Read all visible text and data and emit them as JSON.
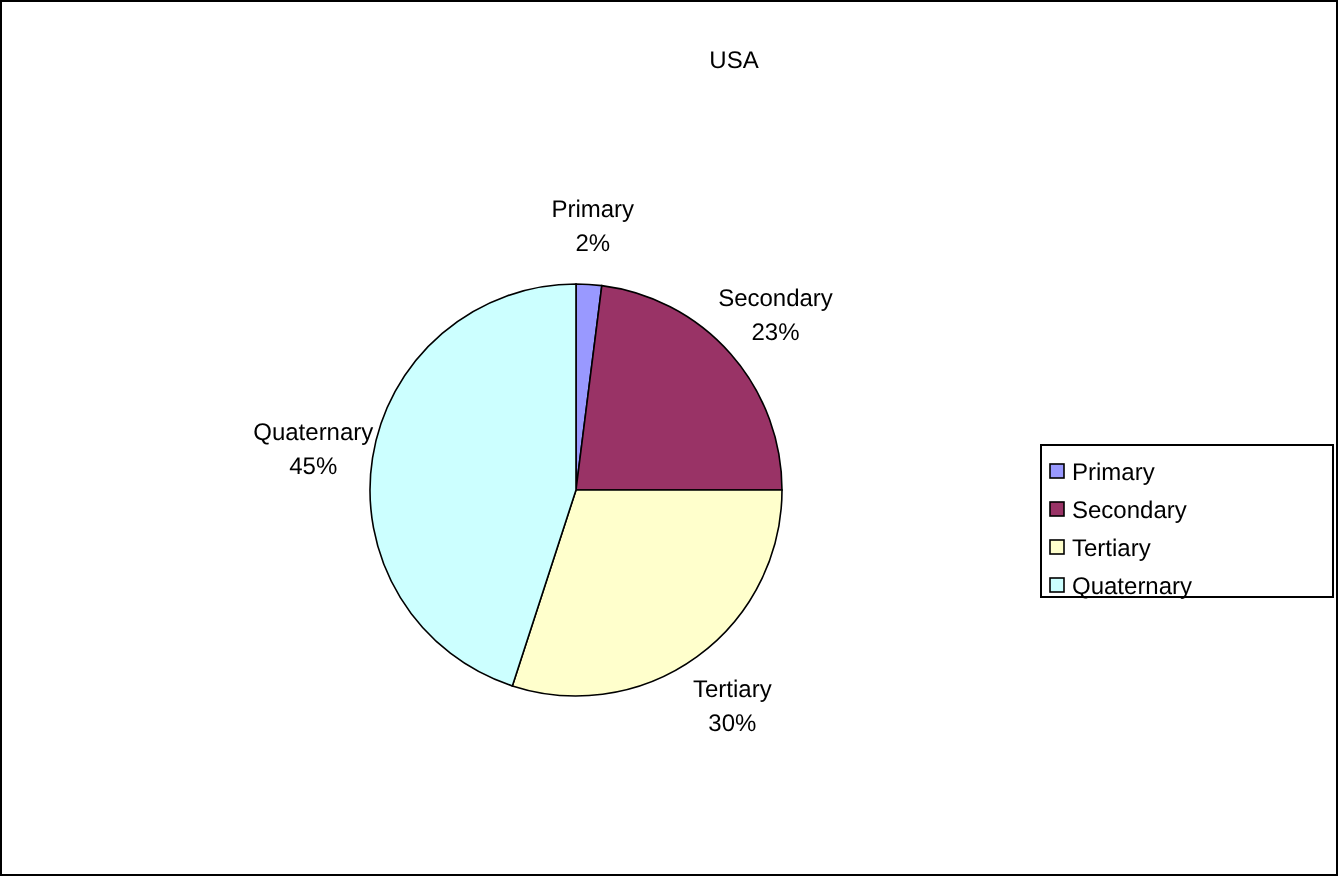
{
  "chart_data": {
    "type": "pie",
    "title": "USA",
    "categories": [
      "Primary",
      "Secondary",
      "Tertiary",
      "Quaternary"
    ],
    "values": [
      2,
      23,
      30,
      45
    ],
    "colors": [
      "#9999ff",
      "#993366",
      "#ffffcc",
      "#ccffff"
    ],
    "value_labels": [
      "2%",
      "23%",
      "30%",
      "45%"
    ],
    "legend": "right"
  }
}
